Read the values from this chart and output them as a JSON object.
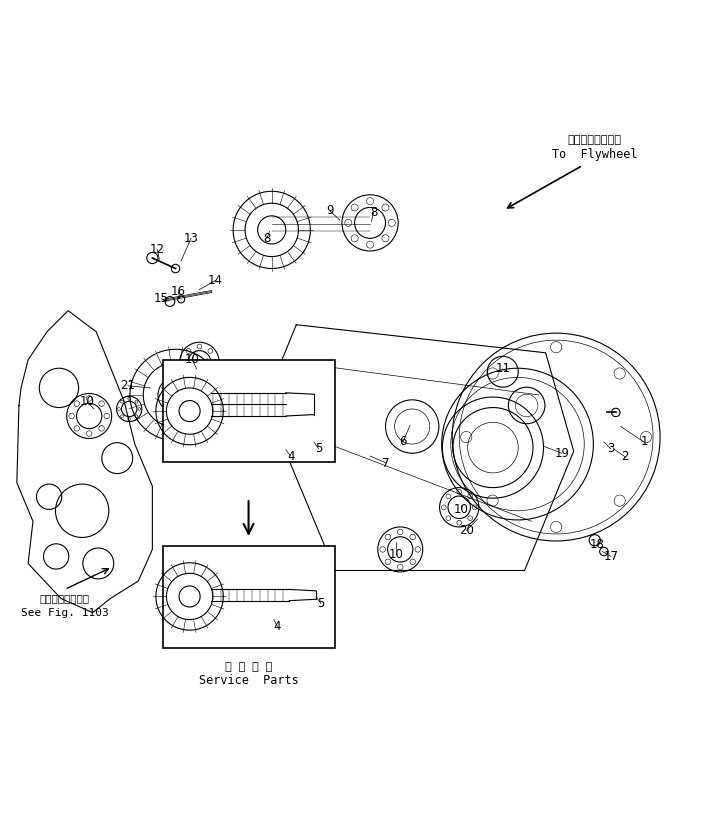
{
  "bg_color": "#ffffff",
  "line_color": "#000000",
  "fig_width": 7.05,
  "fig_height": 8.39,
  "title_jp": "第１１０３図参照",
  "title_en": "See Fig. 1103",
  "service_jp": "補 給 専 用",
  "service_en": "Service  Parts",
  "flywheel_jp": "フライホイールへ",
  "flywheel_en": "To  Flywheel"
}
